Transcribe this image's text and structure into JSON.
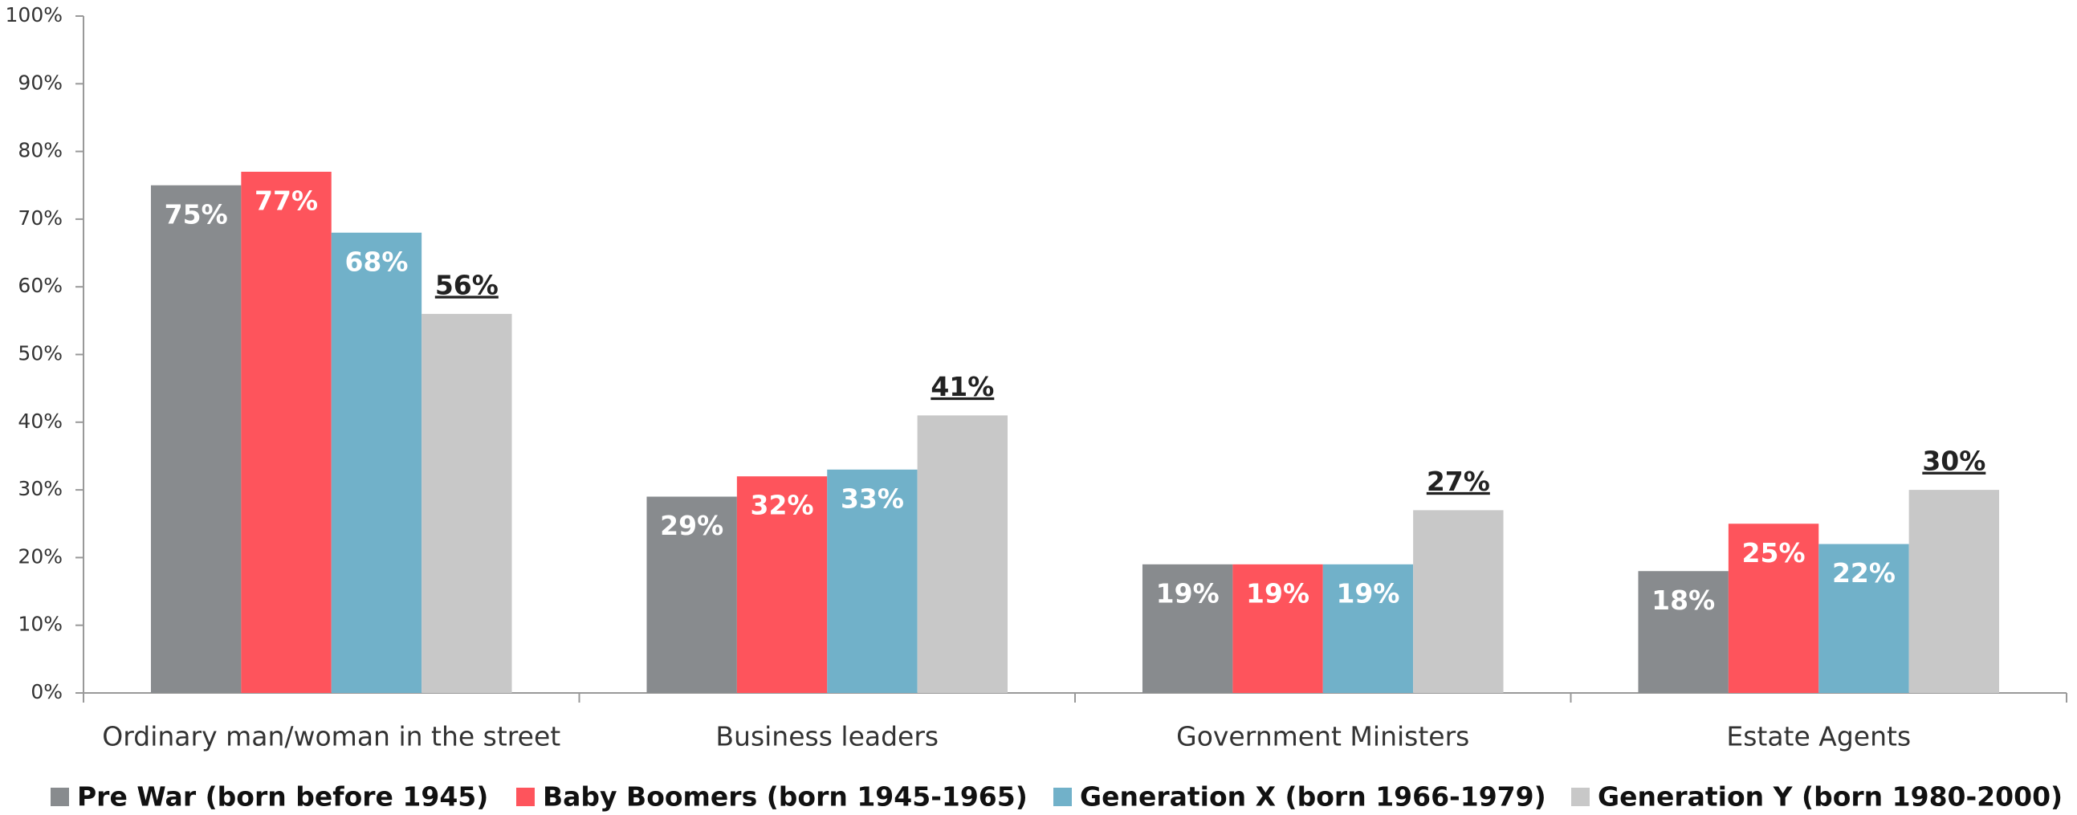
{
  "chart_data": {
    "type": "bar",
    "categories": [
      "Ordinary man/woman in the street",
      "Business leaders",
      "Government Ministers",
      "Estate Agents"
    ],
    "series": [
      {
        "name": "Pre War (born before 1945)",
        "color": "#888b8e",
        "values": [
          75,
          29,
          19,
          18
        ],
        "value_labels": [
          "75%",
          "29%",
          "19%",
          "18%"
        ]
      },
      {
        "name": "Baby Boomers (born 1945-1965)",
        "color": "#fe545c",
        "values": [
          77,
          32,
          19,
          25
        ],
        "value_labels": [
          "77%",
          "32%",
          "19%",
          "25%"
        ]
      },
      {
        "name": "Generation X (born 1966-1979)",
        "color": "#71b1c9",
        "values": [
          68,
          33,
          19,
          22
        ],
        "value_labels": [
          "68%",
          "33%",
          "19%",
          "22%"
        ]
      },
      {
        "name": "Generation Y (born 1980-2000)",
        "color": "#c8c8c8",
        "values": [
          56,
          41,
          27,
          30
        ],
        "value_labels": [
          "56%",
          "41%",
          "27%",
          "30%"
        ]
      }
    ],
    "ylim": [
      0,
      100
    ],
    "yticks": [
      {
        "value": 0,
        "label": "0%"
      },
      {
        "value": 10,
        "label": "10%"
      },
      {
        "value": 20,
        "label": "20%"
      },
      {
        "value": 30,
        "label": "30%"
      },
      {
        "value": 40,
        "label": "40%"
      },
      {
        "value": 50,
        "label": "50%"
      },
      {
        "value": 60,
        "label": "60%"
      },
      {
        "value": 70,
        "label": "70%"
      },
      {
        "value": 80,
        "label": "80%"
      },
      {
        "value": 90,
        "label": "90%"
      },
      {
        "value": 100,
        "label": "100%"
      }
    ],
    "grid": false,
    "legend": "bottom"
  }
}
